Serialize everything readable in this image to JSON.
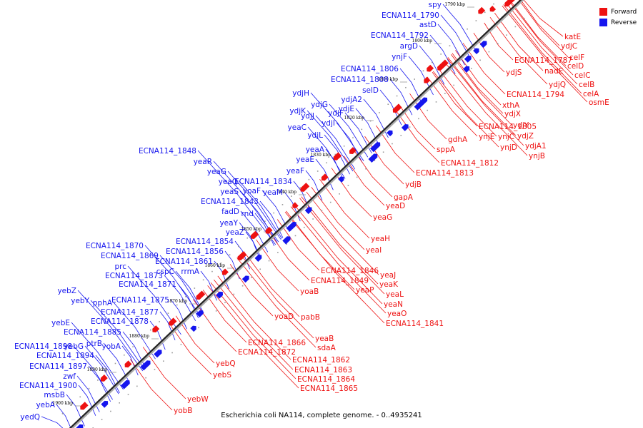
{
  "caption": "Escherichia coli NA114, complete genome. - 0..4935241",
  "legend": {
    "forward_label": "Forward",
    "reverse_label": "Reverse",
    "forward_color": "#ee1111",
    "reverse_color": "#1515ee"
  },
  "ticks": [
    "1790 kbp",
    "1800 kbp",
    "1810 kbp",
    "1820 kbp",
    "1830 kbp",
    "1840 kbp",
    "1850 kbp",
    "1860 kbp",
    "1870 kbp",
    "1880 kbp",
    "1890 kbp",
    "1900 kbp"
  ],
  "genes_reverse": [
    "spy",
    "ECNA114_1790",
    "astD",
    "ECNA114_1792",
    "argD",
    "ynjF",
    "ECNA114_1806",
    "ECNA114_1808",
    "selD",
    "ydjH",
    "ydjA2",
    "ydjG",
    "ydjK",
    "ydjF",
    "ydjE",
    "ydjJ",
    "ydjI",
    "yeaC",
    "ydjL",
    "yeaA",
    "yeaE",
    "ECNA114_1848",
    "yeaR",
    "yeaG",
    "yeaF",
    "yeaQ",
    "ECNA114_1834",
    "yeaS",
    "yoaF",
    "yeaM",
    "ECNA114_1843",
    "fadD",
    "rnd",
    "yeaY",
    "yeaZ",
    "ECNA114_1854",
    "ECNA114_1870",
    "ECNA114_1856",
    "ECNA114_1869",
    "ECNA114_1861",
    "prc",
    "ECNA114_1873",
    "cspC",
    "rrmA",
    "ECNA114_1871",
    "yebZ",
    "ECNA114_1875",
    "yebY",
    "pphA",
    "ECNA114_1877",
    "yebE",
    "ECNA114_1878",
    "ECNA114_1885",
    "ECNA114_1898",
    "yebG",
    "ptrB",
    "yobA",
    "ECNA114_1894",
    "ECNA114_1897",
    "zwf",
    "ECNA114_1900",
    "msbB",
    "yebA",
    "yedQ"
  ],
  "genes_forward": [
    "katE",
    "ydjC",
    "celF",
    "ECNA114_1787",
    "celD",
    "nadE",
    "celC",
    "ydjS",
    "celB",
    "ydjQ",
    "celA",
    "osmE",
    "ECNA114_1794",
    "xthA",
    "ydjX",
    "ECNA114_1805",
    "ydjY",
    "ynjE",
    "ynjC",
    "ydjZ",
    "gdhA",
    "ydjA1",
    "ynjD",
    "ynjB",
    "sppA",
    "ECNA114_1812",
    "ECNA114_1813",
    "ydjB",
    "gapA",
    "yeaD",
    "yeaG",
    "yeaH",
    "yeaI",
    "ECNA114_1846",
    "yeaJ",
    "ECNA114_1849",
    "yeaK",
    "yoaB",
    "yeaP",
    "yeaL",
    "yeaN",
    "yeaO",
    "ECNA114_1841",
    "pabB",
    "yoaD",
    "yeaB",
    "ECNA114_1866",
    "sdaA",
    "ECNA114_1872",
    "ECNA114_1862",
    "yebQ",
    "ECNA114_1863",
    "yebS",
    "ECNA114_1864",
    "ECNA114_1865",
    "yebW",
    "yobB"
  ]
}
